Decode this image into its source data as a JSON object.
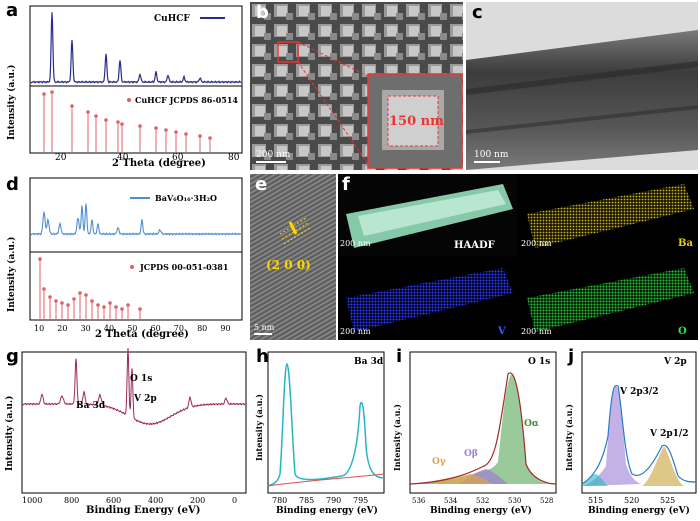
{
  "figure": {
    "panels": {
      "a": {
        "label": "a",
        "ylabel": "Intensity (a.u.)",
        "xlabel": "2 Theta (degree)",
        "legend_top": "CuHCF",
        "legend_bottom": "CuHCF JCPDS 86-0514",
        "ticks": [
          "20",
          "40",
          "60",
          "80"
        ]
      },
      "b": {
        "label": "b",
        "scale": "200 nm",
        "inset": "150 nm"
      },
      "c": {
        "label": "c",
        "scale": "100 nm"
      },
      "d": {
        "label": "d",
        "ylabel": "Intensity (a.u.)",
        "xlabel": "2 Theta (degree)",
        "legend_top": "BaV₆O₁₆·3H₂O",
        "legend_bottom": "JCPDS 00-051-0381",
        "ticks": [
          "10",
          "20",
          "30",
          "40",
          "50",
          "60",
          "70",
          "80",
          "90"
        ]
      },
      "e": {
        "label": "e",
        "plane": "(2 0 0)",
        "scale": "5 nm"
      },
      "f": {
        "label": "f",
        "maps": [
          {
            "name": "HAADF",
            "scale": "200 nm"
          },
          {
            "name": "Ba",
            "scale": "200 nm"
          },
          {
            "name": "V",
            "scale": "200 nm"
          },
          {
            "name": "O",
            "scale": "200 nm"
          }
        ]
      },
      "g": {
        "label": "g",
        "ylabel": "Intensity (a.u.)",
        "xlabel": "Binding Energy (eV)",
        "annotations": [
          "O 1s",
          "V 2p",
          "Ba 3d"
        ],
        "ticks": [
          "1000",
          "800",
          "600",
          "400",
          "200",
          "0"
        ]
      },
      "h": {
        "label": "h",
        "title": "Ba 3d",
        "ylabel": "Intensity (a.u.)",
        "xlabel": "Binding energy (eV)",
        "ticks": [
          "780",
          "785",
          "790",
          "795"
        ]
      },
      "i": {
        "label": "i",
        "title": "O 1s",
        "ylabel": "Intensity (a.u.)",
        "xlabel": "Binding energy (eV)",
        "annotations": [
          "Oγ",
          "Oβ",
          "Oα"
        ],
        "ticks": [
          "536",
          "534",
          "532",
          "530",
          "528"
        ]
      },
      "j": {
        "label": "j",
        "title": "V 2p",
        "ylabel": "Intensity (a.u.)",
        "xlabel": "Binding energy (eV)",
        "annotations": [
          "V 2p3/2",
          "V 2p1/2"
        ],
        "ticks": [
          "515",
          "520",
          "525"
        ]
      }
    }
  },
  "colors": {
    "cuhcf": "#2b2b8c",
    "ref": "#e0606a",
    "bvo": "#4f8fd6",
    "survey": "#9b2a5a",
    "ba_fit": "#29b6c4",
    "o_alpha": "#6fb36f",
    "o_beta": "#9d7fd6",
    "o_gamma": "#e0a24a",
    "v_peak": "#9d7fd6",
    "v_peak2": "#c9a13a"
  }
}
